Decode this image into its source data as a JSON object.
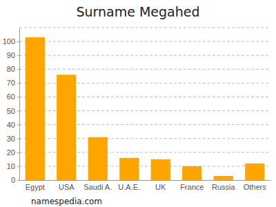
{
  "chart_data": {
    "type": "bar",
    "title": "Surname Megahed",
    "categories": [
      "Egypt",
      "USA",
      "Saudi A.",
      "U.A.E.",
      "UK",
      "France",
      "Russia",
      "Others"
    ],
    "values": [
      103,
      76,
      31,
      16,
      15,
      10,
      3,
      12
    ],
    "color": "#ffa500",
    "ylim": [
      0,
      110
    ],
    "yticks": [
      0,
      10,
      20,
      30,
      40,
      50,
      60,
      70,
      80,
      90,
      100
    ],
    "grid": true,
    "caption": "namespedia.com"
  }
}
